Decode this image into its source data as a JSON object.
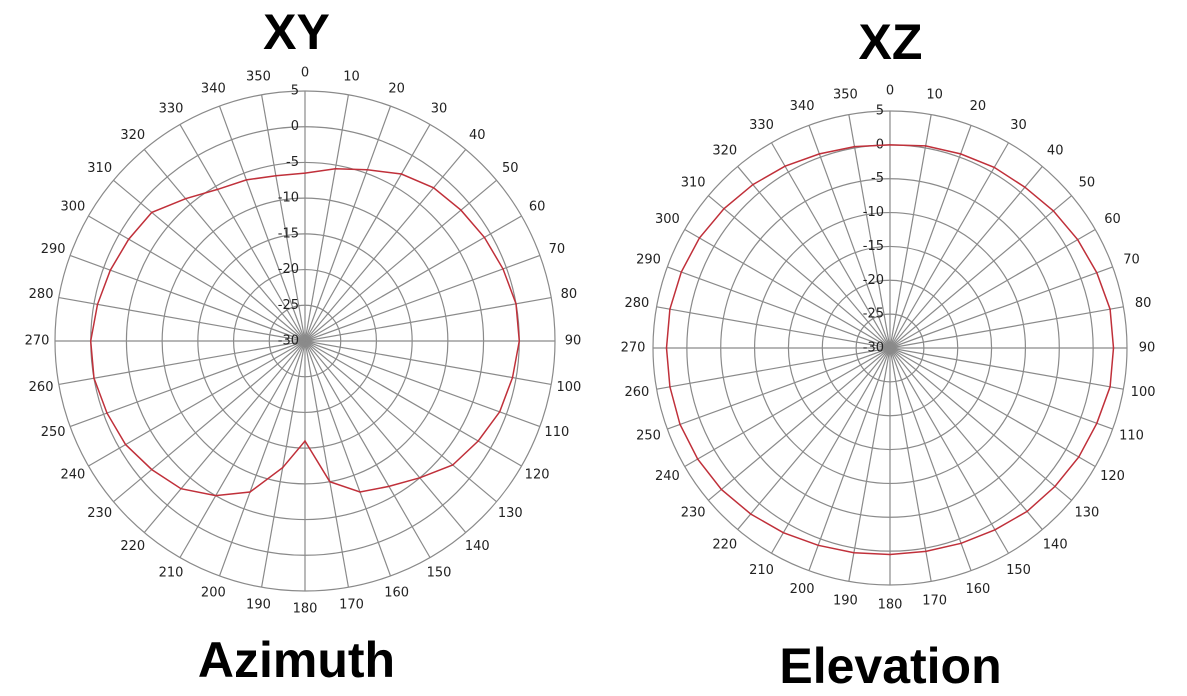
{
  "charts": [
    {
      "title": "XY",
      "caption": "Azimuth",
      "chart_data": {
        "type": "line",
        "polar": true,
        "title": "XY",
        "angle_ticks": [
          0,
          10,
          20,
          30,
          40,
          50,
          60,
          70,
          80,
          90,
          100,
          110,
          120,
          130,
          140,
          150,
          160,
          170,
          180,
          190,
          200,
          210,
          220,
          230,
          240,
          250,
          260,
          270,
          280,
          290,
          300,
          310,
          320,
          330,
          340,
          350
        ],
        "radial_ticks": [
          5,
          0,
          -5,
          -10,
          -15,
          -20,
          -25,
          -30
        ],
        "rlim": [
          -30,
          5
        ],
        "series": [
          {
            "color": "#c0303a",
            "angles": [
              0,
              10,
              20,
              30,
              40,
              50,
              60,
              70,
              80,
              90,
              100,
              110,
              120,
              130,
              140,
              150,
              160,
              170,
              180,
              190,
              200,
              210,
              220,
              230,
              240,
              250,
              260,
              270,
              280,
              290,
              300,
              310,
              320,
              330,
              340,
              350
            ],
            "values": [
              -6.5,
              -5.5,
              -4.5,
              -3,
              -2,
              -1.5,
              -1,
              -0.5,
              0,
              0,
              -0.5,
              -1,
              -2,
              -3,
              -5,
              -6.5,
              -7.5,
              -10,
              -16,
              -12,
              -7.5,
              -5,
              -3,
              -2,
              -1,
              -0.5,
              0,
              0,
              -0.5,
              -1,
              -1.5,
              -2,
              -4,
              -5.5,
              -6,
              -6.5
            ]
          }
        ]
      }
    },
    {
      "title": "XZ",
      "caption": "Elevation",
      "chart_data": {
        "type": "line",
        "polar": true,
        "title": "XZ",
        "angle_ticks": [
          0,
          10,
          20,
          30,
          40,
          50,
          60,
          70,
          80,
          90,
          100,
          110,
          120,
          130,
          140,
          150,
          160,
          170,
          180,
          190,
          200,
          210,
          220,
          230,
          240,
          250,
          260,
          270,
          280,
          290,
          300,
          310,
          320,
          330,
          340,
          350
        ],
        "radial_ticks": [
          5,
          0,
          -5,
          -10,
          -15,
          -20,
          -25,
          -30
        ],
        "rlim": [
          -30,
          5
        ],
        "series": [
          {
            "color": "#c0303a",
            "angles": [
              0,
              10,
              20,
              30,
              40,
              50,
              60,
              70,
              80,
              90,
              100,
              110,
              120,
              130,
              140,
              150,
              160,
              170,
              180,
              190,
              200,
              210,
              220,
              230,
              240,
              250,
              260,
              270,
              280,
              290,
              300,
              310,
              320,
              330,
              340,
              350
            ],
            "values": [
              0,
              0.3,
              0.5,
              0.8,
              1,
              1.5,
              2,
              2.5,
              3,
              3,
              3,
              2.5,
              2.2,
              1.8,
              1.5,
              1,
              0.7,
              0.5,
              0.5,
              0.7,
              1,
              1.5,
              2,
              2.5,
              2.8,
              3,
              3,
              3,
              3,
              2.8,
              2.5,
              2,
              1.5,
              1,
              0.5,
              0.2
            ]
          }
        ]
      }
    }
  ]
}
